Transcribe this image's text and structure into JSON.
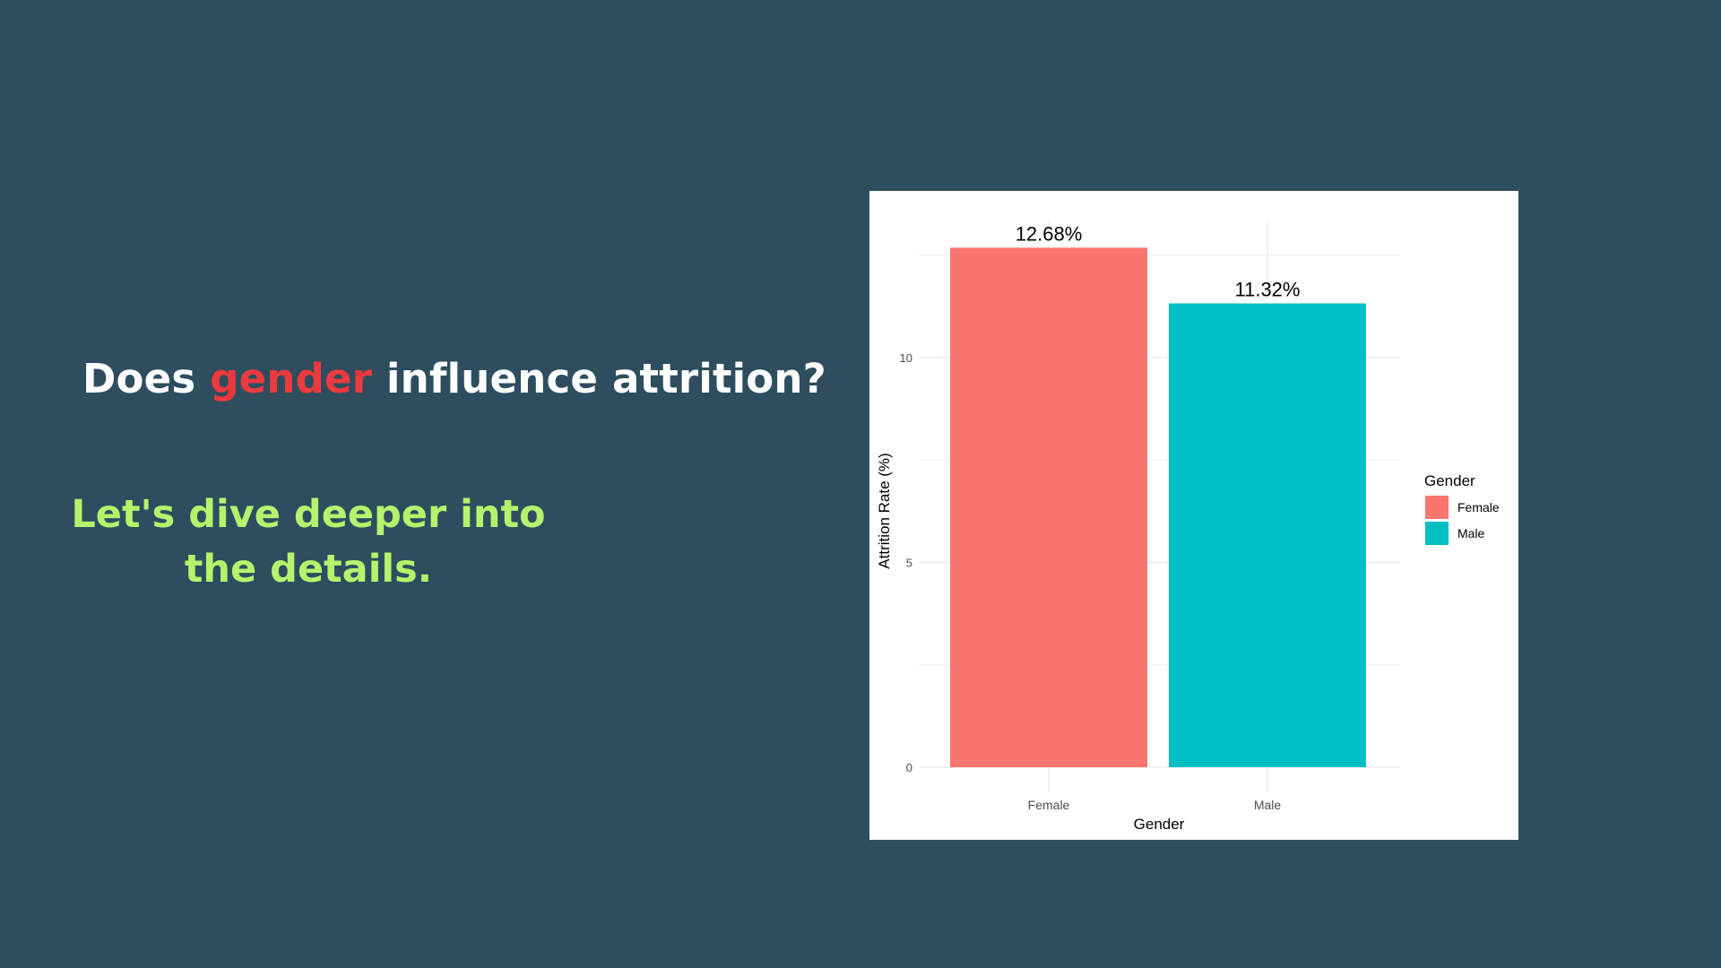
{
  "slide": {
    "title_before": "Does ",
    "title_accent": "gender",
    "title_after": " influence attrition?",
    "subtitle": "Let's dive deeper into the details."
  },
  "colors": {
    "background": "#2e4d5f",
    "title": "#ffffff",
    "accent": "#ed3a3f",
    "subtitle": "#b6f36c",
    "female": "#f8766d",
    "male": "#00bfc4"
  },
  "chart_data": {
    "type": "bar",
    "title": "",
    "xlabel": "Gender",
    "ylabel": "Attrition Rate (%)",
    "categories": [
      "Female",
      "Male"
    ],
    "values": [
      12.68,
      11.32
    ],
    "value_labels": [
      "12.68%",
      "11.32%"
    ],
    "colors": [
      "#f8766d",
      "#00bfc4"
    ],
    "ylim": [
      0,
      13.3
    ],
    "yticks": [
      0,
      5,
      10
    ],
    "grid": true,
    "legend": {
      "title": "Gender",
      "position": "right",
      "entries": [
        "Female",
        "Male"
      ]
    }
  }
}
